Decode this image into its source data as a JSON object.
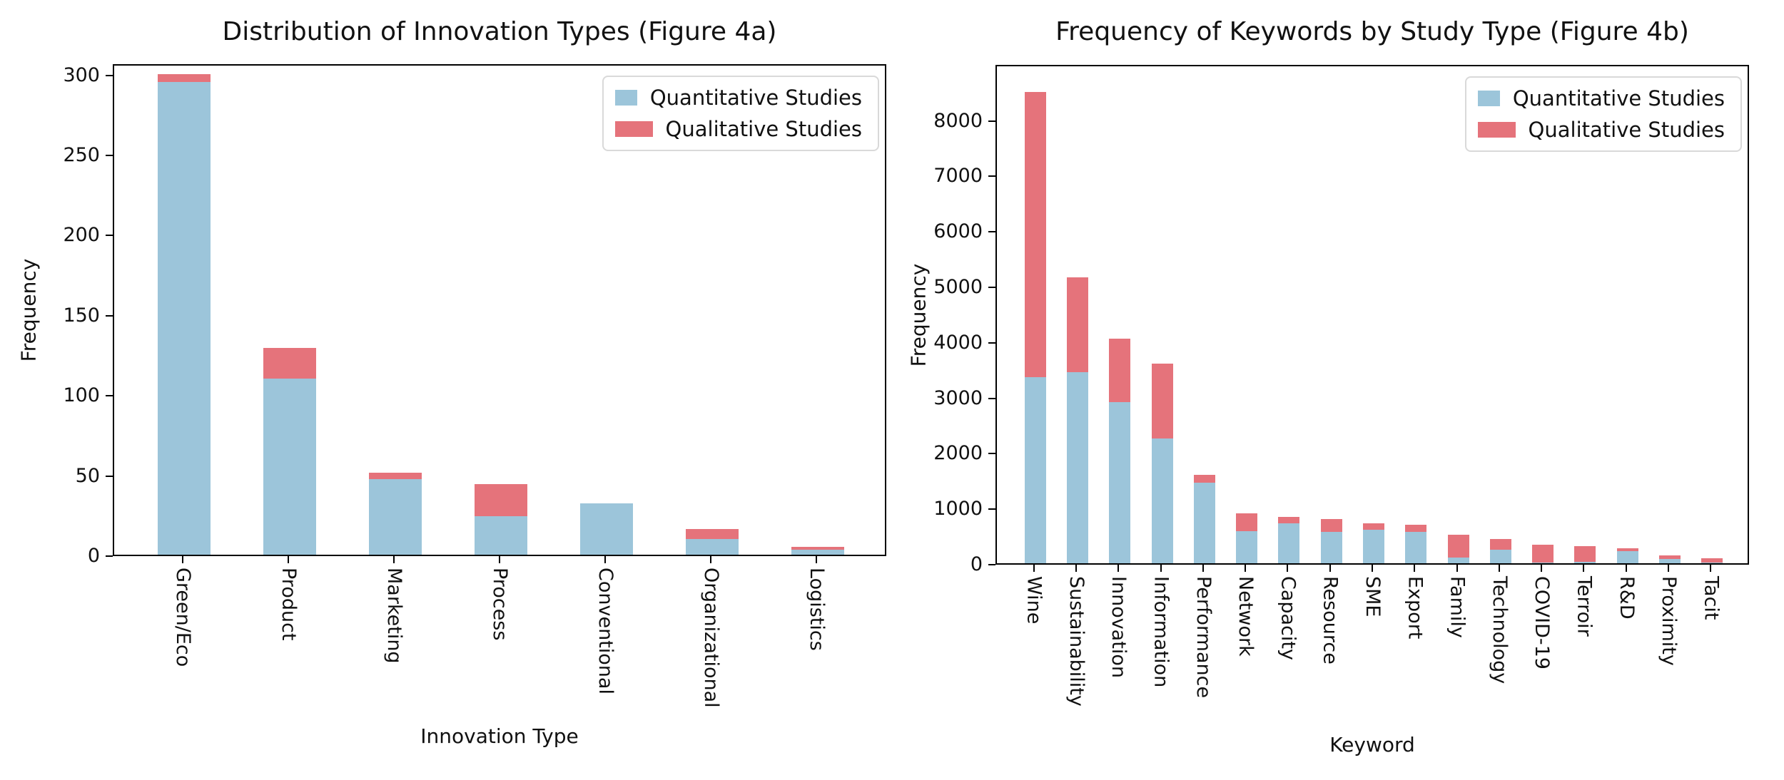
{
  "figure_label": "Figure 4",
  "legend": {
    "items": [
      {
        "label": "Quantitative Studies",
        "color": "#9cc5da"
      },
      {
        "label": "Qualitative Studies",
        "color": "#e5737b"
      }
    ]
  },
  "colors": {
    "quantitative_blue": "#9cc5da",
    "qualitative_red": "#e5737b",
    "spine_black": "#000000",
    "legend_border_gray": "#d9d9d9"
  },
  "chart_data": [
    {
      "type": "bar",
      "stacked": true,
      "title": "Distribution of Innovation Types (Figure 4a)",
      "xlabel": "Innovation Type",
      "ylabel": "Frequency",
      "grid": false,
      "legend_position": "upper right",
      "categories": [
        "Green/Eco",
        "Product",
        "Marketing",
        "Process",
        "Conventional",
        "Organizational",
        "Logistics"
      ],
      "series": [
        {
          "name": "Quantitative Studies",
          "color": "#9cc5da",
          "values": [
            295,
            110,
            47,
            24,
            32,
            10,
            3
          ]
        },
        {
          "name": "Qualitative Studies",
          "color": "#e5737b",
          "values": [
            5,
            19,
            4,
            20,
            0,
            6,
            2
          ]
        }
      ],
      "totals": [
        300,
        129,
        51,
        44,
        32,
        16,
        5
      ],
      "yticks": [
        0,
        50,
        100,
        150,
        200,
        250,
        300
      ],
      "ylim": [
        0,
        307
      ]
    },
    {
      "type": "bar",
      "stacked": true,
      "title": "Frequency of Keywords by Study Type (Figure 4b)",
      "xlabel": "Keyword",
      "ylabel": "Frequency",
      "grid": false,
      "legend_position": "upper right",
      "categories": [
        "Wine",
        "Sustainability",
        "Innovation",
        "Information",
        "Performance",
        "Network",
        "Capacity",
        "Resource",
        "SME",
        "Export",
        "Family",
        "Technology",
        "COVID-19",
        "Terroir",
        "R&D",
        "Proximity",
        "Tacit"
      ],
      "series": [
        {
          "name": "Quantitative Studies",
          "color": "#9cc5da",
          "values": [
            3350,
            3450,
            2900,
            2250,
            1450,
            580,
            720,
            570,
            610,
            560,
            100,
            250,
            10,
            30,
            225,
            75,
            15
          ]
        },
        {
          "name": "Qualitative Studies",
          "color": "#e5737b",
          "values": [
            5150,
            1700,
            1150,
            1350,
            150,
            320,
            120,
            230,
            115,
            130,
            420,
            190,
            330,
            280,
            45,
            70,
            75
          ]
        }
      ],
      "totals": [
        8500,
        5150,
        4050,
        3600,
        1600,
        900,
        840,
        800,
        725,
        690,
        520,
        440,
        340,
        310,
        270,
        145,
        90
      ],
      "yticks": [
        0,
        1000,
        2000,
        3000,
        4000,
        5000,
        6000,
        7000,
        8000
      ],
      "ylim": [
        0,
        9010
      ]
    }
  ]
}
